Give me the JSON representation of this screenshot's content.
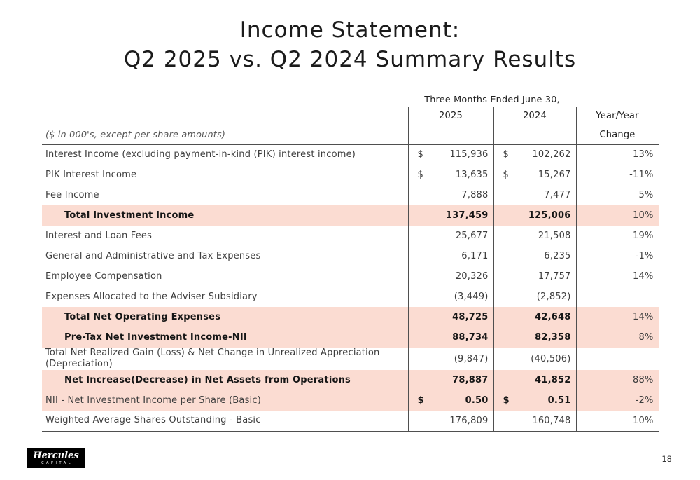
{
  "slide": {
    "title_line1": "Income Statement:",
    "title_line2": "Q2 2025 vs. Q2 2024 Summary Results",
    "page_number": "18"
  },
  "footer": {
    "logo_text": "Hercules",
    "logo_subtext": "CAPITAL"
  },
  "colors": {
    "highlight": "#fbdcd2",
    "border": "#4f4f4f",
    "text": "#3d3d3d"
  },
  "table": {
    "period_header": "Three Months Ended June 30,",
    "columns": {
      "y2025": "2025",
      "y2024": "2024",
      "change_line1": "Year/Year",
      "change_line2": "Change"
    },
    "units_note": "($ in 000's, except per share amounts)",
    "rows": [
      {
        "label": "Interest Income (excluding payment-in-kind (PIK) interest income)",
        "d1": "$",
        "v1": "115,936",
        "d2": "$",
        "v2": "102,262",
        "change": "13%"
      },
      {
        "label": "PIK Interest Income",
        "d1": "$",
        "v1": "13,635",
        "d2": "$",
        "v2": "15,267",
        "change": "-11%"
      },
      {
        "label": "Fee Income",
        "v1": "7,888",
        "v2": "7,477",
        "change": "5%"
      },
      {
        "label": "Total Investment Income",
        "v1": "137,459",
        "v2": "125,006",
        "change": "10%",
        "highlight": true,
        "bold": true,
        "indent": true
      },
      {
        "label": "Interest and Loan Fees",
        "v1": "25,677",
        "v2": "21,508",
        "change": "19%"
      },
      {
        "label": "General and Administrative and Tax Expenses",
        "v1": "6,171",
        "v2": "6,235",
        "change": "-1%"
      },
      {
        "label": "Employee Compensation",
        "v1": "20,326",
        "v2": "17,757",
        "change": "14%"
      },
      {
        "label": "Expenses Allocated to the Adviser Subsidiary",
        "v1": "(3,449)",
        "v2": "(2,852)",
        "change": ""
      },
      {
        "label": "Total Net Operating Expenses",
        "v1": "48,725",
        "v2": "42,648",
        "change": "14%",
        "highlight": true,
        "bold": true,
        "indent": true
      },
      {
        "label": "Pre-Tax Net Investment Income-NII",
        "v1": "88,734",
        "v2": "82,358",
        "change": "8%",
        "highlight": true,
        "bold": true,
        "indent": true
      },
      {
        "label": "Total Net Realized Gain (Loss) & Net Change in Unrealized Appreciation (Depreciation)",
        "v1": "(9,847)",
        "v2": "(40,506)",
        "change": ""
      },
      {
        "label": "Net Increase(Decrease) in Net Assets from Operations",
        "v1": "78,887",
        "v2": "41,852",
        "change": "88%",
        "highlight": true,
        "bold": true,
        "indent": true
      },
      {
        "label": "NII - Net Investment Income per Share (Basic)",
        "d1": "$",
        "v1": "0.50",
        "d2": "$",
        "v2": "0.51",
        "change": "-2%",
        "highlight": true,
        "values_bold": true
      },
      {
        "label": "Weighted Average Shares Outstanding - Basic",
        "v1": "176,809",
        "v2": "160,748",
        "change": "10%"
      }
    ]
  }
}
